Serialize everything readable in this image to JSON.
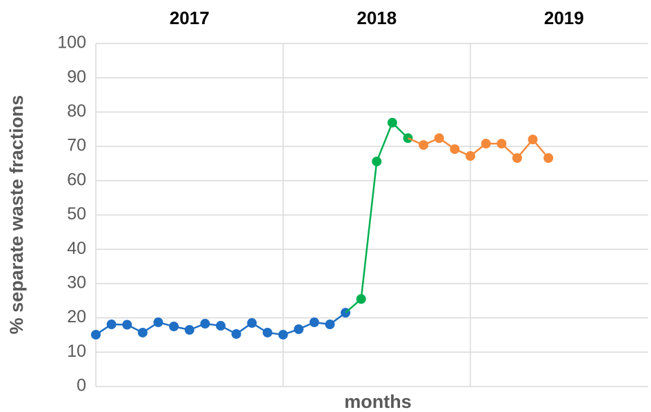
{
  "chart_data": {
    "type": "line",
    "y_label": "% separate waste fractions",
    "x_label": "months",
    "xlim": [
      0,
      35.4
    ],
    "ylim": [
      0,
      100
    ],
    "yticks": [
      0,
      10,
      20,
      30,
      40,
      50,
      60,
      70,
      80,
      90,
      100
    ],
    "year_ticks": [
      {
        "value": 6,
        "label": "2017"
      },
      {
        "value": 18,
        "label": "2018"
      },
      {
        "value": 30,
        "label": "2019"
      }
    ],
    "xgrid": [
      12,
      24
    ],
    "grid": true,
    "series": [
      {
        "color": "#1f6fc5",
        "x": [
          0,
          1,
          2,
          3,
          4,
          5,
          6,
          7,
          8,
          9,
          10,
          11,
          12,
          13,
          14,
          15,
          16
        ],
        "values": [
          15.1,
          18.1,
          18,
          15.7,
          18.7,
          17.5,
          16.5,
          18.3,
          17.7,
          15.3,
          18.5,
          15.7,
          15.1,
          16.7,
          18.7,
          18.1,
          21.5
        ]
      },
      {
        "color": "#00b050",
        "x": [
          17,
          18,
          19,
          20
        ],
        "values": [
          25.5,
          65.6,
          76.9,
          72.4
        ]
      },
      {
        "color": "#f4893a",
        "x": [
          21,
          22,
          23,
          24,
          25,
          26,
          27,
          28,
          29
        ],
        "values": [
          70.4,
          72.4,
          69.2,
          67.2,
          70.8,
          70.8,
          66.6,
          72,
          66.6
        ]
      }
    ]
  }
}
